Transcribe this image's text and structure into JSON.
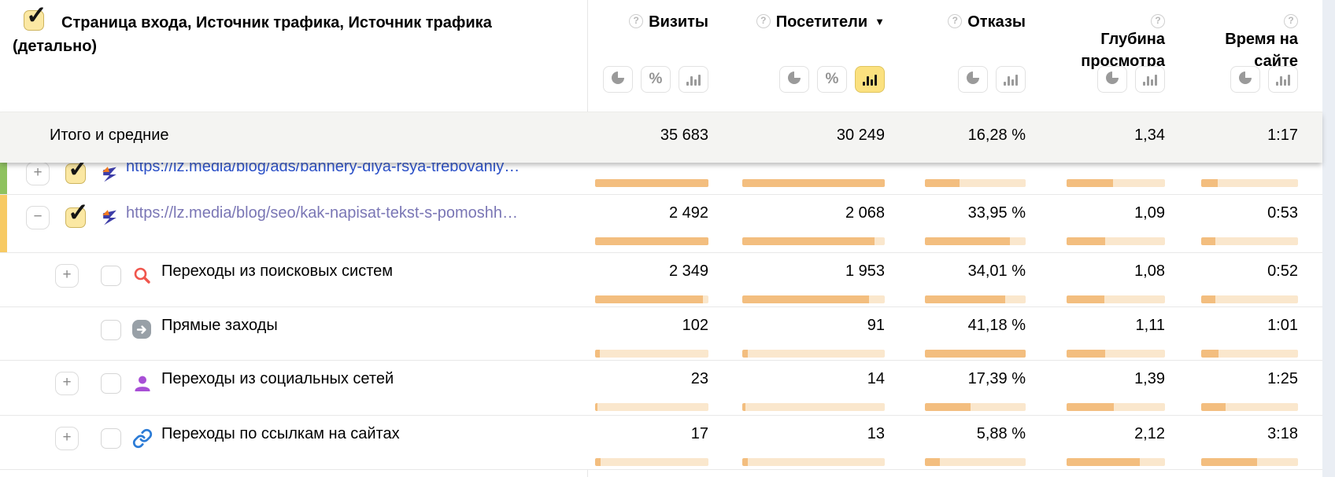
{
  "header": {
    "checkbox_checked": true,
    "title_line1": "Страница входа, Источник трафика, Источник трафика",
    "title_line2": "(детально)",
    "columns": [
      {
        "label": "Визиты",
        "help_icon": true,
        "sort": null,
        "buttons": [
          "pie",
          "percent",
          "bars"
        ],
        "active_button": null
      },
      {
        "label": "Посетители",
        "help_icon": true,
        "sort": "desc",
        "buttons": [
          "pie",
          "percent",
          "bars"
        ],
        "active_button": "bars"
      },
      {
        "label": "Отказы",
        "help_icon": true,
        "sort": null,
        "buttons": [
          "pie",
          "bars"
        ],
        "active_button": null
      },
      {
        "label": "Глубина просмотра",
        "help_icon": true,
        "sort": null,
        "buttons": [
          "pie",
          "bars"
        ],
        "active_button": null
      },
      {
        "label": "Время на сайте",
        "help_icon": true,
        "sort": null,
        "buttons": [
          "pie",
          "bars"
        ],
        "active_button": null
      }
    ]
  },
  "totals": {
    "label": "Итого и средние",
    "values": [
      "35 683",
      "30 249",
      "16,28 %",
      "1,34",
      "1:17"
    ]
  },
  "rows": [
    {
      "kind": "url",
      "partial": true,
      "label": "https://lz.media/blog/ads/bannery-dlya-rsya-trebovaniy…",
      "stripe_color": "#8fc25f",
      "expand": "plus",
      "checked": true,
      "icon": "favicon",
      "link_visited": false,
      "values": [
        null,
        null,
        null,
        null,
        null
      ],
      "bar_fills": [
        100,
        100,
        34,
        47,
        17
      ]
    },
    {
      "kind": "url",
      "partial": false,
      "label": "https://lz.media/blog/seo/kak-napisat-tekst-s-pomoshh…",
      "stripe_color": "#f7ca63",
      "expand": "minus",
      "checked": true,
      "icon": "favicon",
      "link_visited": true,
      "values": [
        "2 492",
        "2 068",
        "33,95 %",
        "1,09",
        "0:53"
      ],
      "bar_fills": [
        100,
        93,
        84,
        39,
        15
      ]
    },
    {
      "kind": "source",
      "partial": false,
      "label": "Переходы из поисковых систем",
      "stripe_color": null,
      "expand": "plus",
      "checked": false,
      "icon": "search",
      "values": [
        "2 349",
        "1 953",
        "34,01 %",
        "1,08",
        "0:52"
      ],
      "bar_fills": [
        95,
        89,
        80,
        38,
        15
      ]
    },
    {
      "kind": "source",
      "partial": false,
      "label": "Прямые заходы",
      "stripe_color": null,
      "expand": null,
      "checked": false,
      "icon": "direct",
      "values": [
        "102",
        "91",
        "41,18 %",
        "1,11",
        "1:01"
      ],
      "bar_fills": [
        4,
        4,
        100,
        39,
        18
      ]
    },
    {
      "kind": "source",
      "partial": false,
      "label": "Переходы из социальных сетей",
      "stripe_color": null,
      "expand": "plus",
      "checked": false,
      "icon": "social",
      "values": [
        "23",
        "14",
        "17,39 %",
        "1,39",
        "1:25"
      ],
      "bar_fills": [
        2,
        2,
        45,
        48,
        25
      ]
    },
    {
      "kind": "source",
      "partial": false,
      "label": "Переходы по ссылкам на сайтах",
      "stripe_color": null,
      "expand": "plus",
      "checked": false,
      "icon": "link",
      "values": [
        "17",
        "13",
        "5,88 %",
        "2,12",
        "3:18"
      ],
      "bar_fills": [
        5,
        4,
        15,
        74,
        58
      ]
    }
  ],
  "colors": {
    "bar_fill": "#f3be7f",
    "bar_track": "#fae7cd",
    "link_blue": "#2b50c8",
    "link_visited": "#7a76b5",
    "stripe_green": "#8fc25f",
    "stripe_yellow": "#f7ca63",
    "active_toggle_bg": "#fbe17f",
    "totals_bg": "#f4f4f2",
    "icon_search": "#f0564d",
    "icon_direct": "#98a0a7",
    "icon_social": "#a84fd6",
    "icon_link": "#2b7bd6"
  }
}
